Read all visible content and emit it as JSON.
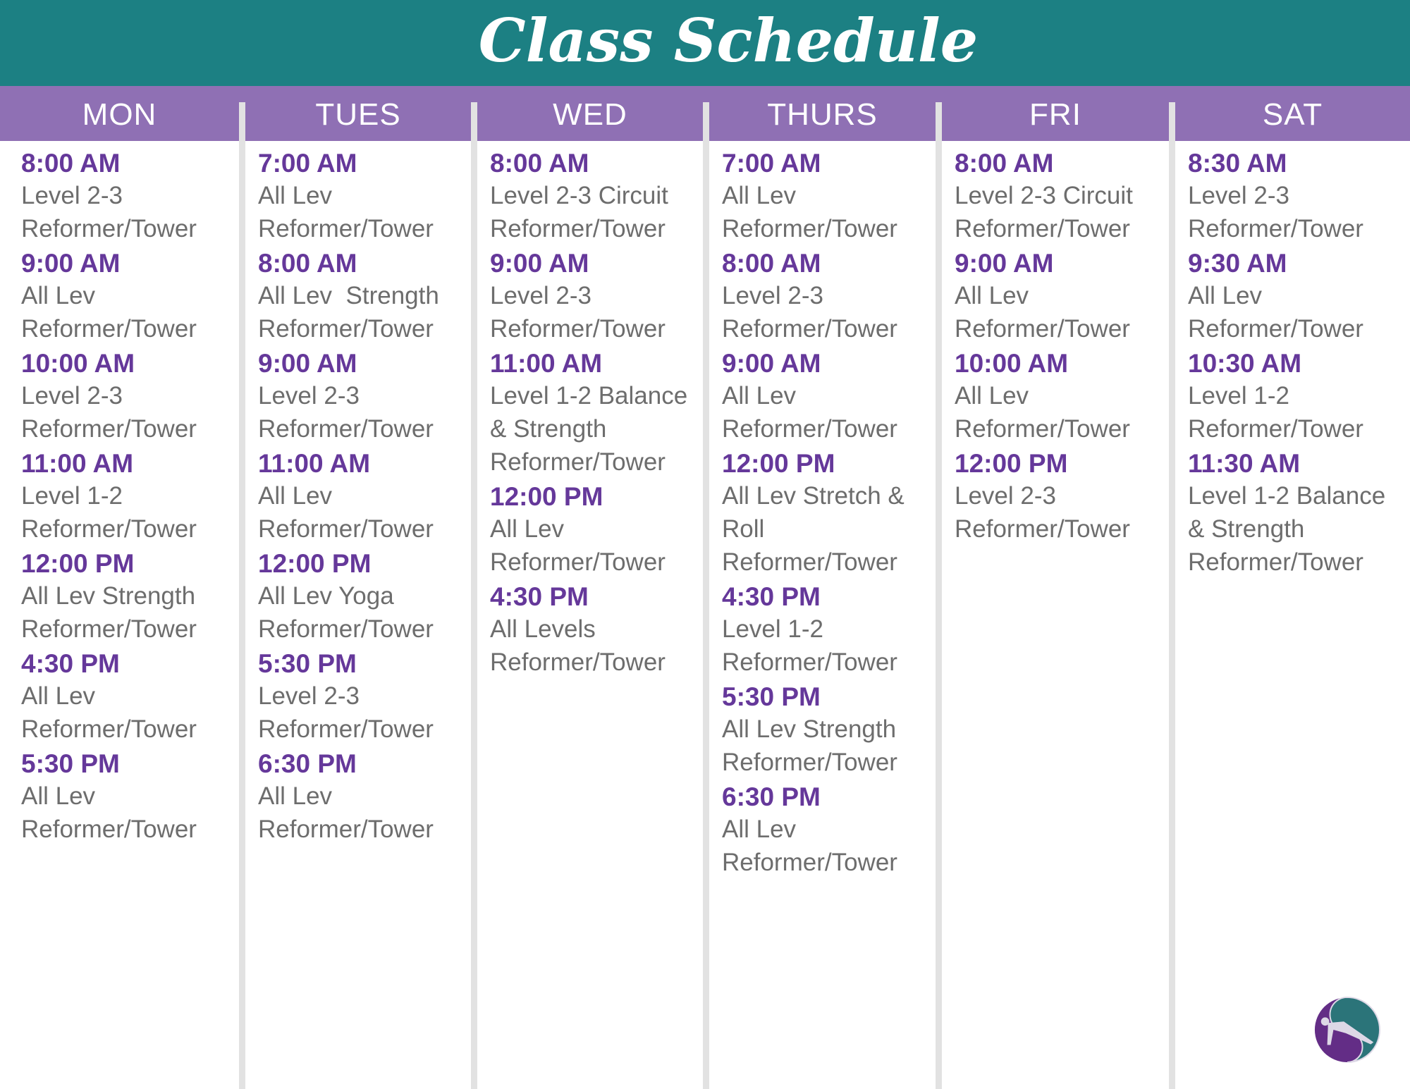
{
  "header": {
    "title": "Class Schedule"
  },
  "colors": {
    "header": "#1c8083",
    "day_bar": "#8f70b4",
    "time": "#65389a",
    "text": "#6d6d6d",
    "divider": "#e2e2e2"
  },
  "logo": {
    "icon": "pilates-figure-logo"
  },
  "days": [
    {
      "name": "MON",
      "entries": [
        {
          "time": "8:00 AM",
          "lines": [
            "Level 2-3",
            "Reformer/Tower"
          ]
        },
        {
          "time": "9:00 AM",
          "lines": [
            "All Lev",
            "Reformer/Tower"
          ]
        },
        {
          "time": "10:00 AM",
          "lines": [
            "Level 2-3",
            "Reformer/Tower"
          ]
        },
        {
          "time": "11:00 AM",
          "lines": [
            "Level 1-2",
            "Reformer/Tower"
          ]
        },
        {
          "time": "12:00 PM",
          "lines": [
            "All Lev Strength",
            "Reformer/Tower"
          ]
        },
        {
          "time": "4:30 PM",
          "lines": [
            "All Lev",
            "Reformer/Tower"
          ]
        },
        {
          "time": "5:30 PM",
          "lines": [
            "All Lev",
            "Reformer/Tower"
          ]
        }
      ]
    },
    {
      "name": "TUES",
      "entries": [
        {
          "time": "7:00 AM",
          "lines": [
            "All Lev",
            "Reformer/Tower"
          ]
        },
        {
          "time": "8:00 AM",
          "lines": [
            "All Lev  Strength",
            "Reformer/Tower"
          ]
        },
        {
          "time": "9:00 AM",
          "lines": [
            "Level 2-3",
            "Reformer/Tower"
          ]
        },
        {
          "time": "11:00 AM",
          "lines": [
            "All Lev",
            "Reformer/Tower"
          ]
        },
        {
          "time": "12:00 PM",
          "lines": [
            "All Lev Yoga",
            "Reformer/Tower"
          ]
        },
        {
          "time": "5:30 PM",
          "lines": [
            "Level 2-3",
            "Reformer/Tower"
          ]
        },
        {
          "time": "6:30 PM",
          "lines": [
            "All Lev",
            "Reformer/Tower"
          ]
        }
      ]
    },
    {
      "name": "WED",
      "entries": [
        {
          "time": "8:00 AM",
          "lines": [
            "Level 2-3 Circuit",
            "Reformer/Tower"
          ]
        },
        {
          "time": "9:00 AM",
          "lines": [
            "Level 2-3",
            "Reformer/Tower"
          ]
        },
        {
          "time": "11:00 AM",
          "lines": [
            "Level 1-2 Balance",
            "& Strength",
            "Reformer/Tower"
          ]
        },
        {
          "time": "12:00 PM",
          "lines": [
            "All Lev",
            "Reformer/Tower"
          ]
        },
        {
          "time": "4:30 PM",
          "lines": [
            "All Levels",
            "Reformer/Tower"
          ]
        }
      ]
    },
    {
      "name": "THURS",
      "entries": [
        {
          "time": "7:00 AM",
          "lines": [
            "All Lev",
            "Reformer/Tower"
          ]
        },
        {
          "time": "8:00 AM",
          "lines": [
            "Level 2-3",
            "Reformer/Tower"
          ]
        },
        {
          "time": "9:00 AM",
          "lines": [
            "All Lev",
            "Reformer/Tower"
          ]
        },
        {
          "time": "12:00 PM",
          "lines": [
            "All Lev Stretch &",
            "Roll",
            "Reformer/Tower"
          ]
        },
        {
          "time": "4:30 PM",
          "lines": [
            "Level 1-2",
            "Reformer/Tower"
          ]
        },
        {
          "time": "5:30 PM",
          "lines": [
            "All Lev Strength",
            "Reformer/Tower"
          ]
        },
        {
          "time": "6:30 PM",
          "lines": [
            "All Lev",
            "Reformer/Tower"
          ]
        }
      ]
    },
    {
      "name": "FRI",
      "entries": [
        {
          "time": "8:00 AM",
          "lines": [
            "Level 2-3 Circuit",
            "Reformer/Tower"
          ]
        },
        {
          "time": "9:00 AM",
          "lines": [
            "All Lev",
            "Reformer/Tower"
          ]
        },
        {
          "time": "10:00 AM",
          "lines": [
            "All Lev",
            "Reformer/Tower"
          ]
        },
        {
          "time": "12:00 PM",
          "lines": [
            "Level 2-3",
            "Reformer/Tower"
          ]
        }
      ]
    },
    {
      "name": "SAT",
      "entries": [
        {
          "time": "8:30 AM",
          "lines": [
            "Level 2-3",
            "Reformer/Tower"
          ]
        },
        {
          "time": "9:30 AM",
          "lines": [
            "All Lev",
            "Reformer/Tower"
          ]
        },
        {
          "time": "10:30 AM",
          "lines": [
            "Level 1-2",
            "Reformer/Tower"
          ]
        },
        {
          "time": "11:30 AM",
          "lines": [
            "Level 1-2 Balance",
            "& Strength",
            "Reformer/Tower"
          ]
        }
      ]
    }
  ]
}
